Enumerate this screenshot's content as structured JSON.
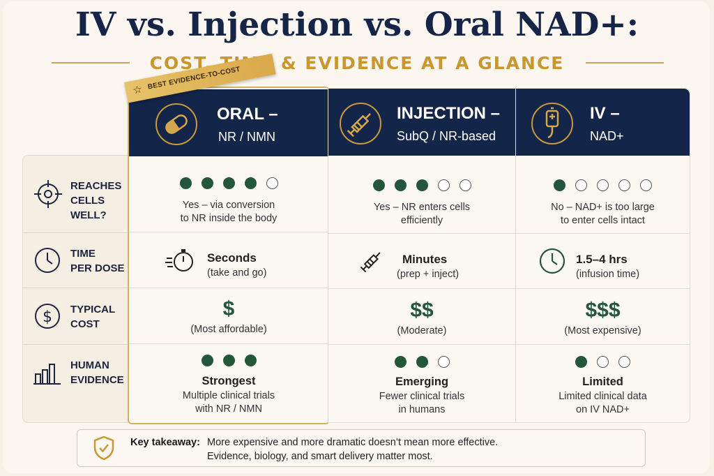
{
  "title": "IV vs. Injection vs. Oral NAD+:",
  "subtitle": "COST, TIME & EVIDENCE AT A GLANCE",
  "colors": {
    "navy": "#14254a",
    "gold": "#c9962f",
    "green": "#24563a"
  },
  "ribbon": {
    "label": "BEST EVIDENCE-TO-COST",
    "icon": "star-icon"
  },
  "rows": [
    {
      "label": "REACHES\nCELLS WELL?",
      "icon": "crosshair-icon"
    },
    {
      "label": "TIME\nPER DOSE",
      "icon": "clock-icon"
    },
    {
      "label": "TYPICAL\nCOST",
      "icon": "dollar-icon"
    },
    {
      "label": "HUMAN\nEVIDENCE",
      "icon": "bar-chart-icon"
    }
  ],
  "columns": [
    {
      "key": "oral",
      "title": "ORAL –",
      "subtitle": "NR / NMN",
      "icon": "pill-capsule-icon",
      "reach_level": 4,
      "reach_max": 5,
      "reach_text1": "Yes – via conversion",
      "reach_text2": "to NR inside the body",
      "time_icon": "stopwatch-icon",
      "time_main": "Seconds",
      "time_sub": "(take and go)",
      "cost_symbol": "$",
      "cost_text": "(Most affordable)",
      "evidence_level": 3,
      "evidence_max": 3,
      "evidence_title": "Strongest",
      "evidence_text1": "Multiple clinical trials",
      "evidence_text2": "with NR / NMN"
    },
    {
      "key": "inj",
      "title": "INJECTION –",
      "subtitle": "SubQ / NR-based",
      "icon": "syringe-icon",
      "reach_level": 3,
      "reach_max": 5,
      "reach_text1": "Yes – NR enters cells",
      "reach_text2": "efficiently",
      "time_icon": "syringe-icon",
      "time_main": "Minutes",
      "time_sub": "(prep + inject)",
      "cost_symbol": "$$",
      "cost_text": "(Moderate)",
      "evidence_level": 2,
      "evidence_max": 3,
      "evidence_title": "Emerging",
      "evidence_text1": "Fewer clinical trials",
      "evidence_text2": "in humans"
    },
    {
      "key": "iv",
      "title": "IV –",
      "subtitle": "NAD+",
      "icon": "iv-bag-icon",
      "reach_level": 1,
      "reach_max": 5,
      "reach_text1": "No – NAD+ is too large",
      "reach_text2": "to enter cells intact",
      "time_icon": "clock-icon",
      "time_main": "1.5–4 hrs",
      "time_sub": "(infusion time)",
      "cost_symbol": "$$$",
      "cost_text": "(Most expensive)",
      "evidence_level": 1,
      "evidence_max": 3,
      "evidence_title": "Limited",
      "evidence_text1": "Limited clinical data",
      "evidence_text2": "on IV NAD+"
    }
  ],
  "takeaway": {
    "icon": "shield-check-icon",
    "label": "Key takeaway:",
    "line1": "More expensive and more dramatic doesn’t mean more effective.",
    "line2": "Evidence, biology, and smart delivery matter most."
  }
}
